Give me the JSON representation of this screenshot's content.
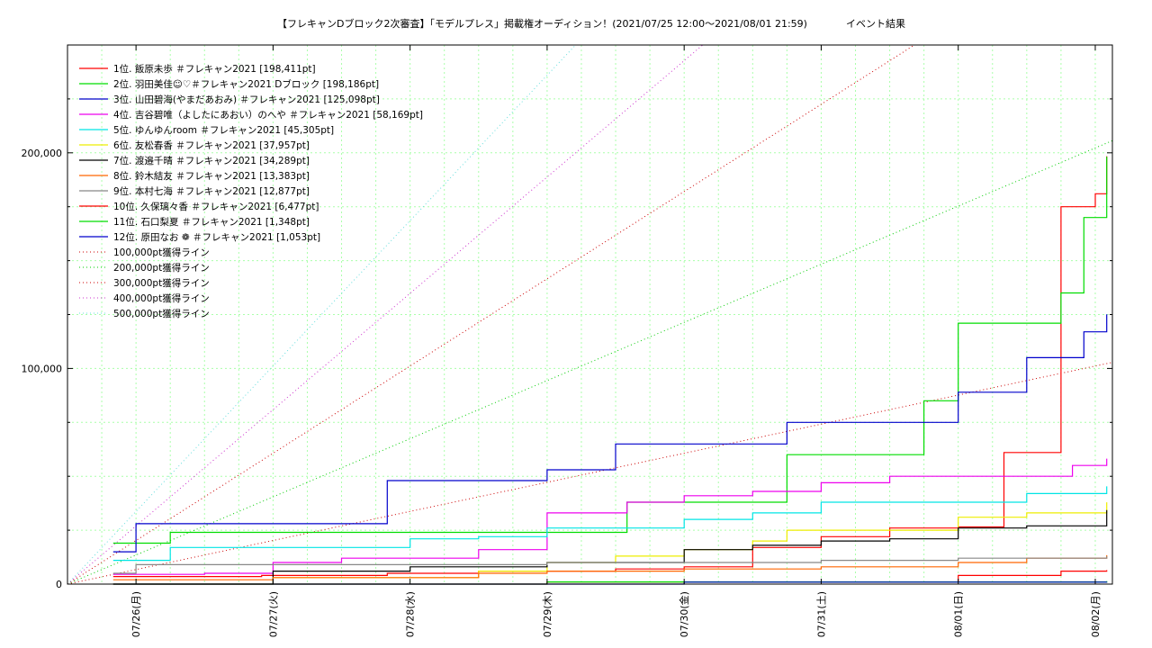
{
  "chart_data": {
    "type": "line",
    "title": "【フレキャンDブロック2次審査】「モデルプレス」掲載権オーディション！(2021/07/25 12:00〜2021/08/01 21:59)",
    "subtitle": "イベント結果",
    "x_ticks": [
      "07/26(月)",
      "07/27(火)",
      "07/28(水)",
      "07/29(木)",
      "07/30(金)",
      "07/31(土)",
      "08/01(日)",
      "08/02(月)"
    ],
    "xlim": [
      "2021-07-25 12:00",
      "2021-08-02 03:00"
    ],
    "ylim": [
      0,
      250000
    ],
    "y_ticks": [
      0,
      100000,
      200000
    ],
    "y_tick_labels": [
      "0",
      "100,000",
      "200,000"
    ],
    "grid": true,
    "legend_position": "top-left",
    "series": [
      {
        "name": "1位. 飯原未歩 ＃フレキャン2021 [198,411pt]",
        "color": "#ff0000",
        "x": [
          "2021-07-25 20:00",
          "2021-07-26 22:00",
          "2021-07-27 20:00",
          "2021-07-28 12:00",
          "2021-07-29 12:00",
          "2021-07-30 00:00",
          "2021-07-30 12:00",
          "2021-07-31 00:00",
          "2021-07-31 12:00",
          "2021-08-01 00:00",
          "2021-08-01 08:00",
          "2021-08-01 12:00",
          "2021-08-01 18:00",
          "2021-08-02 00:00",
          "2021-08-02 02:00"
        ],
        "y": [
          3500,
          4000,
          5000,
          6000,
          7000,
          8000,
          17000,
          22000,
          26000,
          26500,
          61000,
          61000,
          175000,
          181000,
          198411
        ]
      },
      {
        "name": "2位. 羽田美佳☺♡＃フレキャン2021 Dブロック [198,186pt]",
        "color": "#00dd00",
        "x": [
          "2021-07-25 20:00",
          "2021-07-26 00:00",
          "2021-07-26 06:00",
          "2021-07-27 12:00",
          "2021-07-28 12:00",
          "2021-07-29 12:00",
          "2021-07-29 14:00",
          "2021-07-30 12:00",
          "2021-07-30 18:00",
          "2021-07-31 12:00",
          "2021-07-31 18:00",
          "2021-08-01 00:00",
          "2021-08-01 12:00",
          "2021-08-01 18:00",
          "2021-08-01 22:00",
          "2021-08-02 02:00"
        ],
        "y": [
          19000,
          19000,
          24000,
          24000,
          24000,
          24000,
          38000,
          38000,
          60000,
          60000,
          85000,
          121000,
          121000,
          135000,
          170000,
          198186
        ]
      },
      {
        "name": "3位. 山田碧海(やまだあおみ) ＃フレキャン2021 [125,098pt]",
        "color": "#0000cc",
        "x": [
          "2021-07-25 20:00",
          "2021-07-26 00:00",
          "2021-07-27 00:00",
          "2021-07-27 20:00",
          "2021-07-28 12:00",
          "2021-07-29 00:00",
          "2021-07-29 12:00",
          "2021-07-30 00:00",
          "2021-07-30 18:00",
          "2021-07-31 12:00",
          "2021-08-01 00:00",
          "2021-08-01 12:00",
          "2021-08-01 22:00",
          "2021-08-02 02:00"
        ],
        "y": [
          15000,
          28000,
          28000,
          48000,
          48000,
          53000,
          65000,
          65000,
          75000,
          75000,
          89000,
          105000,
          117000,
          125098
        ]
      },
      {
        "name": "4位. 吉谷碧唯（よしたにあおい）のへや ＃フレキャン2021 [58,169pt]",
        "color": "#ee00ee",
        "x": [
          "2021-07-25 20:00",
          "2021-07-26 12:00",
          "2021-07-27 00:00",
          "2021-07-27 12:00",
          "2021-07-28 12:00",
          "2021-07-29 00:00",
          "2021-07-29 14:00",
          "2021-07-30 00:00",
          "2021-07-30 12:00",
          "2021-07-31 00:00",
          "2021-07-31 12:00",
          "2021-08-01 12:00",
          "2021-08-01 20:00",
          "2021-08-02 02:00"
        ],
        "y": [
          4500,
          5000,
          10000,
          12000,
          16000,
          33000,
          38000,
          41000,
          43000,
          47000,
          50000,
          50000,
          55000,
          58169
        ]
      },
      {
        "name": "5位. ゆんゆんroom ＃フレキャン2021 [45,305pt]",
        "color": "#00e5e5",
        "x": [
          "2021-07-25 20:00",
          "2021-07-26 06:00",
          "2021-07-27 12:00",
          "2021-07-28 00:00",
          "2021-07-28 12:00",
          "2021-07-29 00:00",
          "2021-07-29 12:00",
          "2021-07-30 00:00",
          "2021-07-30 12:00",
          "2021-07-31 00:00",
          "2021-08-01 00:00",
          "2021-08-01 12:00",
          "2021-08-02 02:00"
        ],
        "y": [
          11000,
          17000,
          17000,
          21000,
          22000,
          26000,
          26000,
          30000,
          33000,
          38000,
          38000,
          42000,
          45305
        ]
      },
      {
        "name": "6位. 友松春香 ＃フレキャン2021 [37,957pt]",
        "color": "#eeee00",
        "x": [
          "2021-07-25 20:00",
          "2021-07-27 00:00",
          "2021-07-28 12:00",
          "2021-07-29 00:00",
          "2021-07-29 12:00",
          "2021-07-30 00:00",
          "2021-07-30 12:00",
          "2021-07-30 18:00",
          "2021-07-31 12:00",
          "2021-08-01 00:00",
          "2021-08-01 12:00",
          "2021-08-02 02:00"
        ],
        "y": [
          0,
          3000,
          6000,
          10000,
          13000,
          16000,
          20000,
          25000,
          25000,
          31000,
          33000,
          37957
        ]
      },
      {
        "name": "7位. 渡邉千晴 ＃フレキャン2021 [34,289pt]",
        "color": "#000000",
        "x": [
          "2021-07-25 20:00",
          "2021-07-27 00:00",
          "2021-07-28 00:00",
          "2021-07-29 00:00",
          "2021-07-29 12:00",
          "2021-07-30 00:00",
          "2021-07-30 12:00",
          "2021-07-31 00:00",
          "2021-07-31 12:00",
          "2021-08-01 00:00",
          "2021-08-01 12:00",
          "2021-08-02 02:00"
        ],
        "y": [
          0,
          6000,
          8000,
          10000,
          10000,
          16000,
          18000,
          20000,
          21000,
          26000,
          27000,
          34289
        ]
      },
      {
        "name": "8位. 鈴木結友 ＃フレキャン2021 [13,383pt]",
        "color": "#ff6600",
        "x": [
          "2021-07-25 20:00",
          "2021-07-27 00:00",
          "2021-07-28 12:00",
          "2021-07-29 00:00",
          "2021-07-30 00:00",
          "2021-07-31 00:00",
          "2021-08-01 00:00",
          "2021-08-01 12:00",
          "2021-08-02 02:00"
        ],
        "y": [
          2000,
          3000,
          5000,
          6000,
          7000,
          8000,
          10000,
          12000,
          13383
        ]
      },
      {
        "name": "9位. 本村七海 ＃フレキャン2021 [12,877pt]",
        "color": "#888888",
        "x": [
          "2021-07-25 20:00",
          "2021-07-26 00:00",
          "2021-07-28 12:00",
          "2021-07-29 00:00",
          "2021-07-30 00:00",
          "2021-07-31 00:00",
          "2021-08-01 00:00",
          "2021-08-02 02:00"
        ],
        "y": [
          5000,
          9000,
          9000,
          10000,
          10000,
          11000,
          12000,
          12877
        ]
      },
      {
        "name": "10位. 久保璃々香 ＃フレキャン2021 [6,477pt]",
        "color": "#ff0000",
        "x": [
          "2021-07-25 20:00",
          "2021-07-29 00:00",
          "2021-08-01 00:00",
          "2021-08-01 18:00",
          "2021-08-02 02:00"
        ],
        "y": [
          0,
          1000,
          4000,
          6000,
          6477
        ]
      },
      {
        "name": "11位. 石口梨夏 ＃フレキャン2021 [1,348pt]",
        "color": "#00dd00",
        "x": [
          "2021-07-25 20:00",
          "2021-07-29 00:00",
          "2021-08-02 02:00"
        ],
        "y": [
          0,
          1000,
          1348
        ]
      },
      {
        "name": "12位. 原田なお ❁ ＃フレキャン2021 [1,053pt]",
        "color": "#0000cc",
        "x": [
          "2021-07-25 20:00",
          "2021-07-30 00:00",
          "2021-08-02 02:00"
        ],
        "y": [
          0,
          900,
          1053
        ]
      }
    ],
    "reference_lines": [
      {
        "name": "100,000pt獲得ライン",
        "color": "#cc0000",
        "target": 100000
      },
      {
        "name": "200,000pt獲得ライン",
        "color": "#00cc00",
        "target": 200000
      },
      {
        "name": "300,000pt獲得ライン",
        "color": "#cc0000",
        "target": 300000
      },
      {
        "name": "400,000pt獲得ライン",
        "color": "#cc33cc",
        "target": 400000
      },
      {
        "name": "500,000pt獲得ライン",
        "color": "#66dddd",
        "target": 500000
      }
    ]
  }
}
